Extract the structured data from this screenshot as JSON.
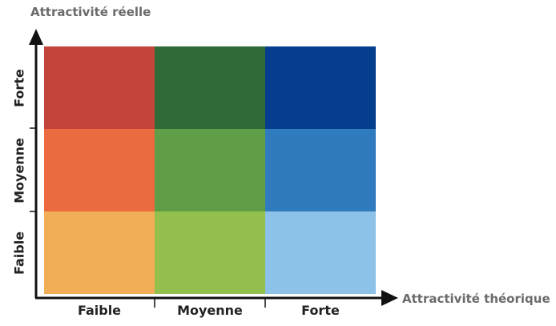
{
  "y_axis_title": "Attractivité réelle",
  "x_axis_title": "Attractivité théorique",
  "columns": [
    "Faible",
    "Moyenne",
    "Forte"
  ],
  "rows": [
    "Forte",
    "Moyenne",
    "Faible"
  ],
  "cells": [
    [
      "#c2443a",
      "#2f6a38",
      "#063e8f"
    ],
    [
      "#ec6a3f",
      "#5f9e46",
      "#2f7bbd"
    ],
    [
      "#f2ae56",
      "#93c04c",
      "#8cc2e8"
    ]
  ],
  "axis_color": "#111111"
}
